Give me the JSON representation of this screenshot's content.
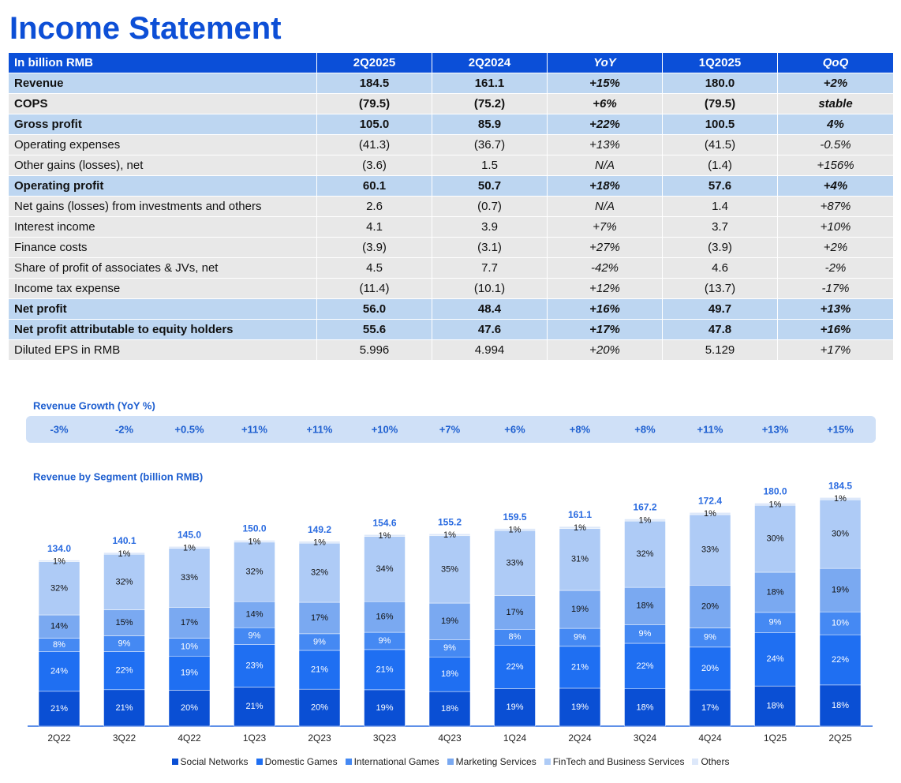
{
  "title": "Income Statement",
  "table": {
    "header": [
      "In billion RMB",
      "2Q2025",
      "2Q2024",
      "YoY",
      "1Q2025",
      "QoQ"
    ],
    "rows": [
      [
        "Revenue",
        "184.5",
        "161.1",
        "+15%",
        "180.0",
        "+2%"
      ],
      [
        "COPS",
        "(79.5)",
        "(75.2)",
        "+6%",
        "(79.5)",
        "stable"
      ],
      [
        "Gross profit",
        "105.0",
        "85.9",
        "+22%",
        "100.5",
        "4%"
      ],
      [
        "Operating expenses",
        "(41.3)",
        "(36.7)",
        "+13%",
        "(41.5)",
        "-0.5%"
      ],
      [
        "Other gains (losses), net",
        "(3.6)",
        "1.5",
        "N/A",
        "(1.4)",
        "+156%"
      ],
      [
        "Operating profit",
        "60.1",
        "50.7",
        "+18%",
        "57.6",
        "+4%"
      ],
      [
        "Net gains (losses) from investments and others",
        "2.6",
        "(0.7)",
        "N/A",
        "1.4",
        "+87%"
      ],
      [
        "Interest income",
        "4.1",
        "3.9",
        "+7%",
        "3.7",
        "+10%"
      ],
      [
        "Finance costs",
        "(3.9)",
        "(3.1)",
        "+27%",
        "(3.9)",
        "+2%"
      ],
      [
        "Share of profit of associates & JVs, net",
        "4.5",
        "7.7",
        "-42%",
        "4.6",
        "-2%"
      ],
      [
        "Income tax expense",
        "(11.4)",
        "(10.1)",
        "+12%",
        "(13.7)",
        "-17%"
      ],
      [
        "Net profit",
        "56.0",
        "48.4",
        "+16%",
        "49.7",
        "+13%"
      ],
      [
        "Net profit attributable to equity holders",
        "55.6",
        "47.6",
        "+17%",
        "47.8",
        "+16%"
      ],
      [
        "Diluted EPS in RMB",
        "5.996",
        "4.994",
        "+20%",
        "5.129",
        "+17%"
      ]
    ]
  },
  "growth": {
    "title": "Revenue Growth (YoY %)",
    "values": [
      "-3%",
      "-2%",
      "+0.5%",
      "+11%",
      "+11%",
      "+10%",
      "+7%",
      "+6%",
      "+8%",
      "+8%",
      "+11%",
      "+13%",
      "+15%"
    ]
  },
  "chart_data": {
    "type": "bar",
    "stacked": true,
    "title": "Revenue by Segment (billion RMB)",
    "categories": [
      "2Q22",
      "3Q22",
      "4Q22",
      "1Q23",
      "2Q23",
      "3Q23",
      "4Q23",
      "1Q24",
      "2Q24",
      "3Q24",
      "4Q24",
      "1Q25",
      "2Q25"
    ],
    "totals": {
      "values": [
        134.0,
        140.1,
        145.0,
        150.0,
        149.2,
        154.6,
        155.2,
        159.5,
        161.1,
        167.2,
        172.4,
        180.0,
        184.5
      ],
      "value_labels": [
        "134.0",
        "140.1",
        "145.0",
        "150.0",
        "149.2",
        "154.6",
        "155.2",
        "159.5",
        "161.1",
        "167.2",
        "172.4",
        "180.0",
        "184.5"
      ]
    },
    "series": [
      {
        "name": "Social Networks",
        "color": "#0a4fd4",
        "values": [
          21,
          21,
          20,
          21,
          20,
          19,
          18,
          19,
          19,
          18,
          17,
          18,
          18
        ],
        "value_labels": [
          "21%",
          "21%",
          "20%",
          "21%",
          "20%",
          "19%",
          "18%",
          "19%",
          "19%",
          "18%",
          "17%",
          "18%",
          "18%"
        ]
      },
      {
        "name": "Domestic Games",
        "color": "#1f6ff2",
        "values": [
          24,
          22,
          19,
          23,
          21,
          21,
          18,
          22,
          21,
          22,
          20,
          24,
          22
        ],
        "value_labels": [
          "24%",
          "22%",
          "19%",
          "23%",
          "21%",
          "21%",
          "18%",
          "22%",
          "21%",
          "22%",
          "20%",
          "24%",
          "22%"
        ]
      },
      {
        "name": "International Games",
        "color": "#4589f3",
        "values": [
          8,
          9,
          10,
          9,
          9,
          9,
          9,
          8,
          9,
          9,
          9,
          9,
          10
        ],
        "value_labels": [
          "8%",
          "9%",
          "10%",
          "9%",
          "9%",
          "9%",
          "9%",
          "8%",
          "9%",
          "9%",
          "9%",
          "9%",
          "10%"
        ]
      },
      {
        "name": "Marketing Services",
        "color": "#7aa9f1",
        "values": [
          14,
          15,
          17,
          14,
          17,
          16,
          19,
          17,
          19,
          18,
          20,
          18,
          19
        ],
        "value_labels": [
          "14%",
          "15%",
          "17%",
          "14%",
          "17%",
          "16%",
          "19%",
          "17%",
          "19%",
          "18%",
          "20%",
          "18%",
          "19%"
        ]
      },
      {
        "name": "FinTech and Business Services",
        "color": "#aecbf6",
        "values": [
          32,
          32,
          33,
          32,
          32,
          34,
          35,
          33,
          31,
          32,
          33,
          30,
          30
        ],
        "value_labels": [
          "32%",
          "32%",
          "33%",
          "32%",
          "32%",
          "34%",
          "35%",
          "33%",
          "31%",
          "32%",
          "33%",
          "30%",
          "30%"
        ]
      },
      {
        "name": "Others",
        "color": "#dde8fa",
        "values": [
          1,
          1,
          1,
          1,
          1,
          1,
          1,
          1,
          1,
          1,
          1,
          1,
          1
        ],
        "value_labels": [
          "1%",
          "1%",
          "1%",
          "1%",
          "1%",
          "1%",
          "1%",
          "1%",
          "1%",
          "1%",
          "1%",
          "1%",
          "1%"
        ]
      }
    ]
  }
}
